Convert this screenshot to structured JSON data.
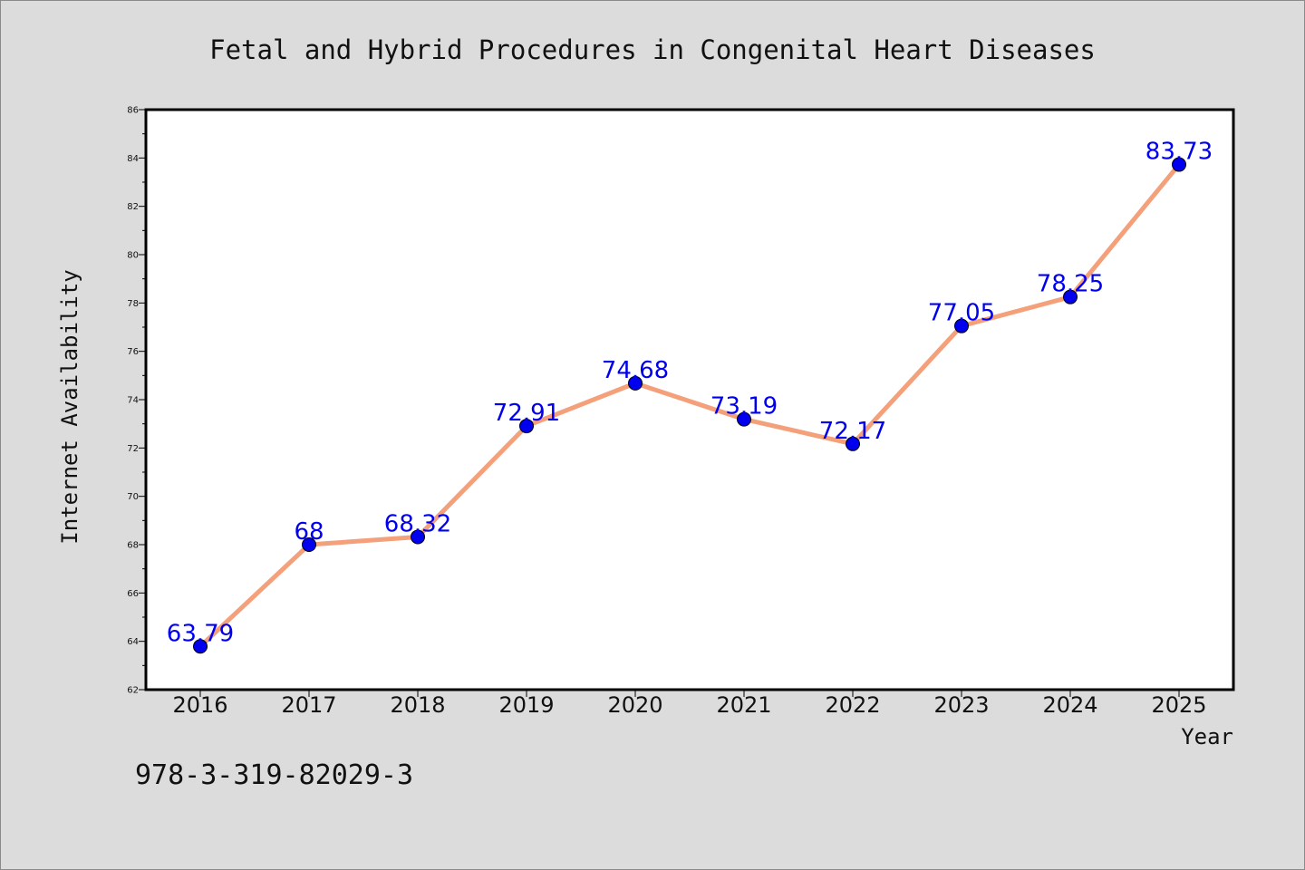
{
  "chart_data": {
    "type": "line",
    "title": "Fetal and Hybrid Procedures in Congenital Heart Diseases",
    "xlabel": "Year",
    "ylabel": "Internet Availability",
    "categories": [
      "2016",
      "2017",
      "2018",
      "2019",
      "2020",
      "2021",
      "2022",
      "2023",
      "2024",
      "2025"
    ],
    "values": [
      63.79,
      68,
      68.32,
      72.91,
      74.68,
      73.19,
      72.17,
      77.05,
      78.25,
      83.73
    ],
    "data_labels": [
      "63.79",
      "68",
      "68.32",
      "72.91",
      "74.68",
      "73.19",
      "72.17",
      "77.05",
      "78.25",
      "83.73"
    ],
    "ylim": [
      62,
      86
    ],
    "yticks": [
      62,
      64,
      66,
      68,
      70,
      72,
      74,
      76,
      78,
      80,
      82,
      84,
      86
    ],
    "grid": false,
    "legend": "none",
    "line_color": "#f4a07a",
    "marker_color": "#0000ee",
    "label_color": "#0000ee"
  },
  "footer": {
    "isbn": "978-3-319-82029-3"
  }
}
